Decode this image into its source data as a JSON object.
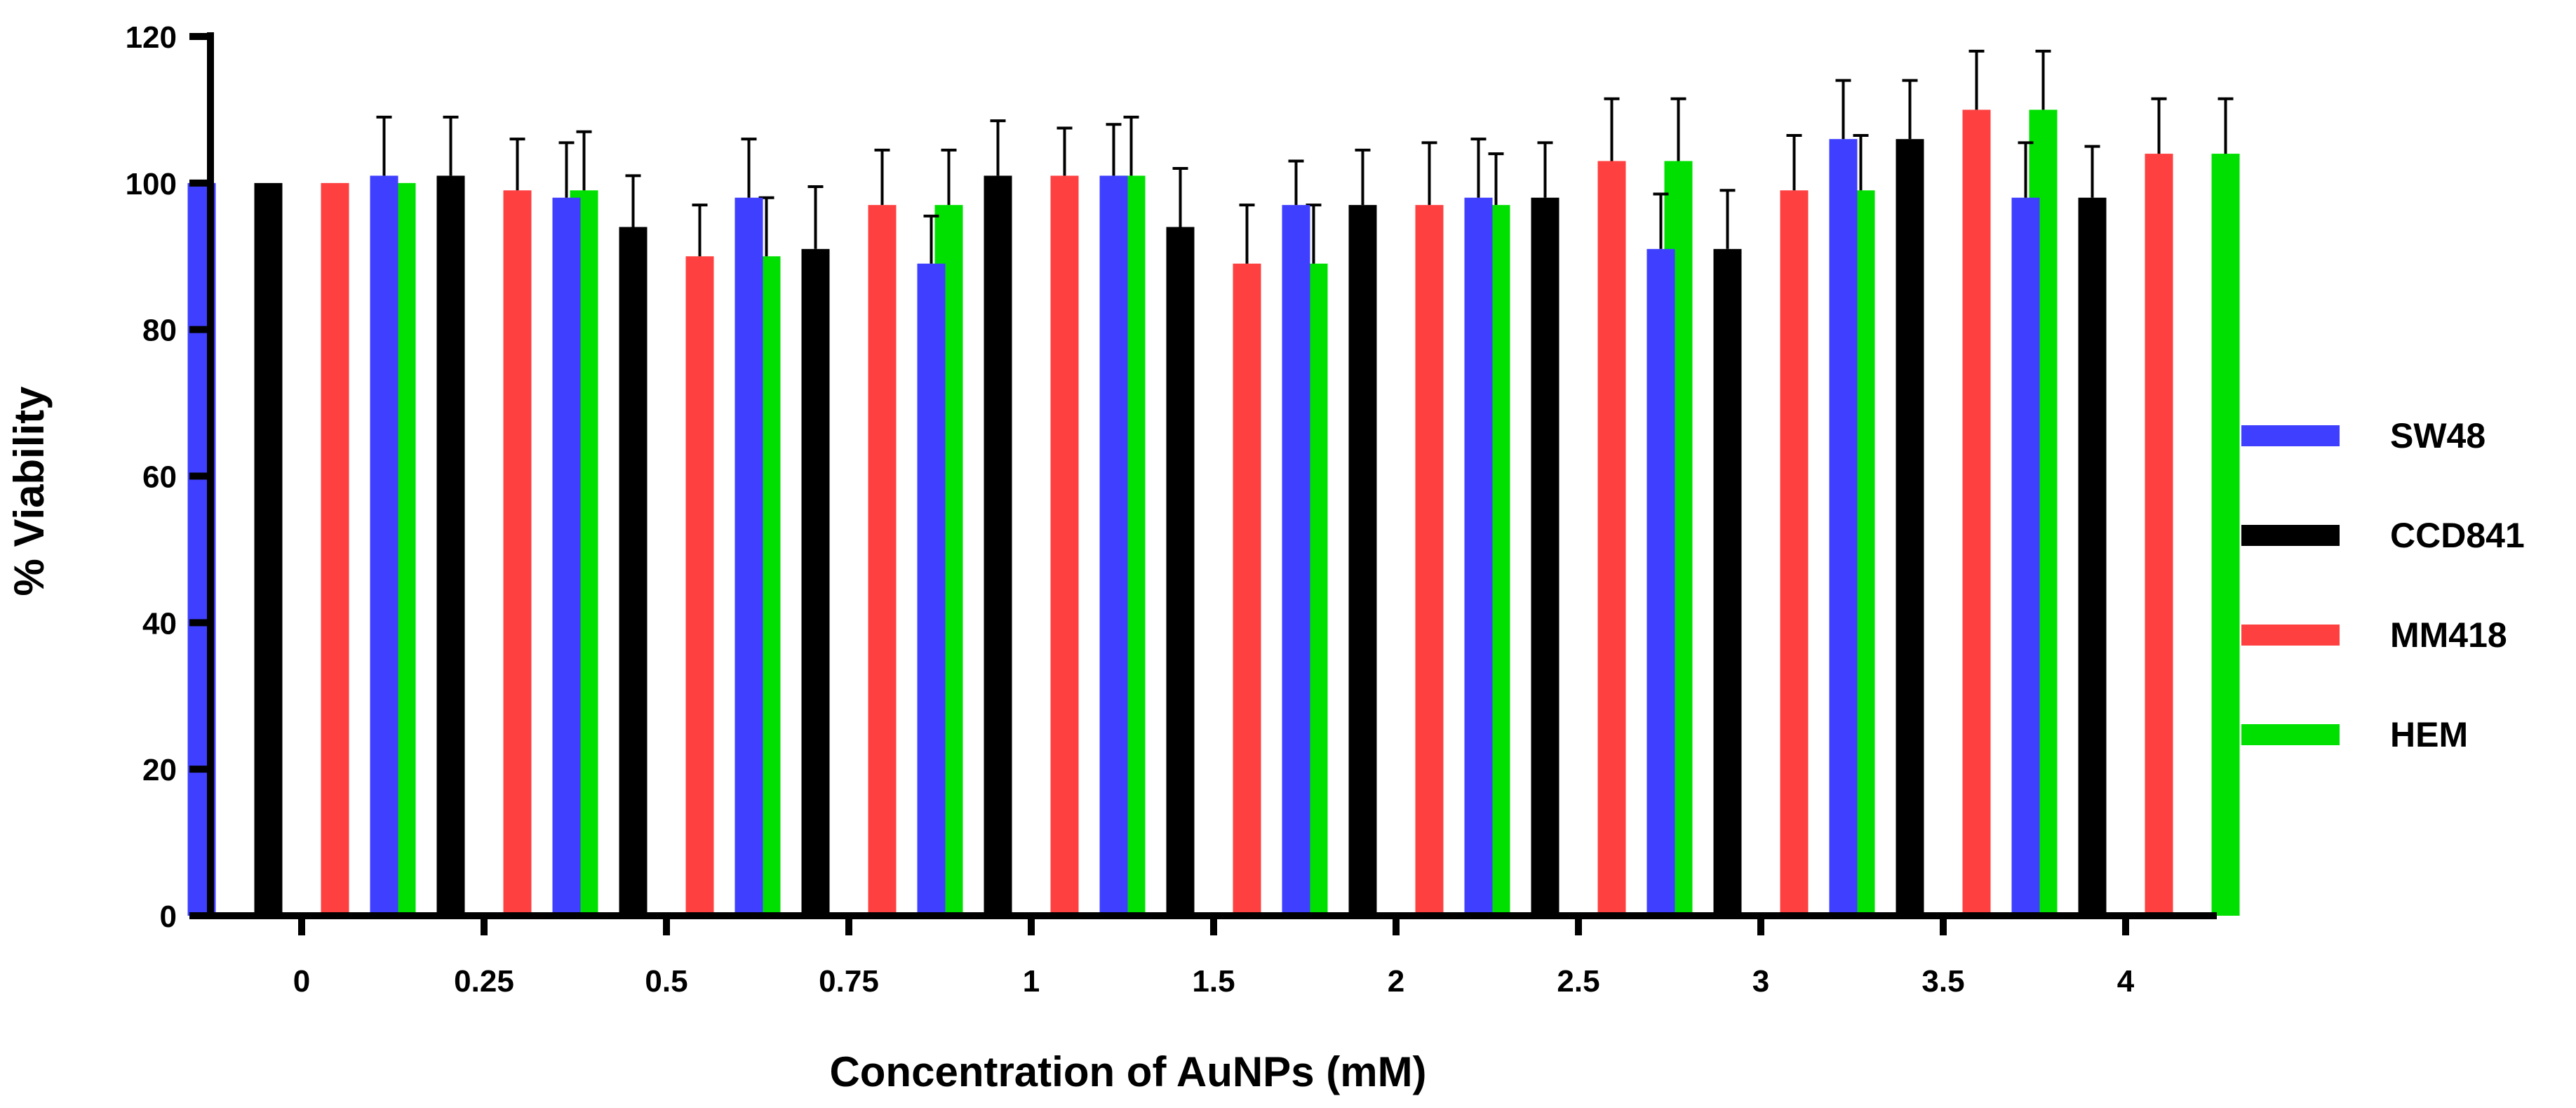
{
  "chart_data": {
    "type": "bar",
    "xlabel": "Concentration of AuNPs (mM)",
    "ylabel": "% Viability",
    "ylim": [
      0,
      120
    ],
    "yticks": [
      0,
      20,
      40,
      60,
      80,
      100,
      120
    ],
    "categories": [
      "0",
      "0.25",
      "0.5",
      "0.75",
      "1",
      "1.5",
      "2",
      "2.5",
      "3",
      "3.5",
      "4"
    ],
    "series": [
      {
        "name": "SW48",
        "color": "#3F3FFF",
        "values": [
          100,
          101,
          98,
          98,
          89,
          101,
          97,
          98,
          91,
          106,
          98
        ],
        "errors": [
          0,
          8,
          7.5,
          8,
          6.5,
          7,
          6,
          8,
          7.5,
          8,
          7.5
        ]
      },
      {
        "name": "CCD841",
        "color": "#000000",
        "values": [
          100,
          101,
          94,
          91,
          101,
          94,
          97,
          98,
          91,
          106,
          98
        ],
        "errors": [
          0,
          8,
          7,
          8.5,
          7.5,
          8,
          7.5,
          7.5,
          8,
          8,
          7
        ]
      },
      {
        "name": "MM418",
        "color": "#FF4040",
        "values": [
          100,
          99,
          90,
          97,
          101,
          89,
          97,
          103,
          99,
          110,
          104
        ],
        "errors": [
          0,
          7,
          7,
          7.5,
          6.5,
          8,
          8.5,
          8.5,
          7.5,
          8,
          7.5
        ]
      },
      {
        "name": "HEM",
        "color": "#00E000",
        "values": [
          100,
          99,
          90,
          97,
          101,
          89,
          97,
          103,
          99,
          110,
          104
        ],
        "errors": [
          0,
          8,
          8,
          7.5,
          8,
          8,
          7,
          8.5,
          7.5,
          8,
          7.5
        ]
      }
    ],
    "legend": "right",
    "grid": false
  }
}
